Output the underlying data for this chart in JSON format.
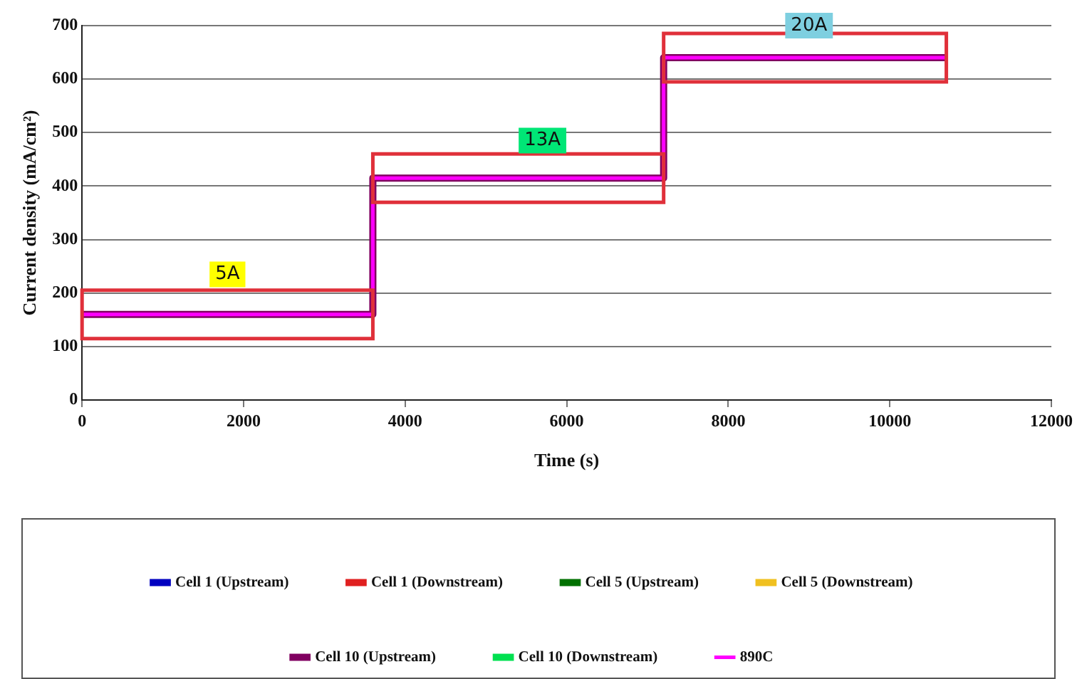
{
  "chart_data": {
    "type": "line",
    "xlabel": "Time (s)",
    "ylabel": "Current density (mA/cm²)",
    "xlim": [
      0,
      12000
    ],
    "xticks": [
      0,
      2000,
      4000,
      6000,
      8000,
      10000,
      12000
    ],
    "ylim": [
      0,
      700
    ],
    "yticks": [
      0,
      100,
      200,
      300,
      400,
      500,
      600,
      700
    ],
    "grid": "y",
    "legend": "bottom",
    "marker": "none",
    "line_style": "solid",
    "x": [
      0,
      3600,
      3600,
      7200,
      7200,
      10700
    ],
    "series": [
      {
        "name": "Cell 1 (Upstream)",
        "color": "#0000c0",
        "values": [
          null,
          null,
          null,
          null,
          null,
          null
        ]
      },
      {
        "name": "Cell 1 (Downstream)",
        "color": "#e02020",
        "values": [
          null,
          null,
          null,
          null,
          null,
          null
        ]
      },
      {
        "name": "Cell 5 (Upstream)",
        "color": "#007000",
        "values": [
          null,
          null,
          null,
          null,
          null,
          null
        ]
      },
      {
        "name": "Cell 5 (Downstream)",
        "color": "#f0c020",
        "values": [
          null,
          null,
          null,
          null,
          null,
          null
        ]
      },
      {
        "name": "Cell 10 (Upstream)",
        "color": "#800060",
        "values": [
          160,
          160,
          415,
          415,
          640,
          640
        ]
      },
      {
        "name": "Cell 10 (Downstream)",
        "color": "#00e050",
        "values": [
          null,
          null,
          null,
          null,
          null,
          null
        ]
      },
      {
        "name": "890C",
        "color": "#ff00ff",
        "values": [
          160,
          160,
          415,
          415,
          640,
          640
        ]
      }
    ],
    "annotations": [
      {
        "text": "5A",
        "x": 1800,
        "y": 235
      },
      {
        "text": "13A",
        "x": 5700,
        "y": 485
      },
      {
        "text": "20A",
        "x": 9000,
        "y": 700
      }
    ]
  }
}
